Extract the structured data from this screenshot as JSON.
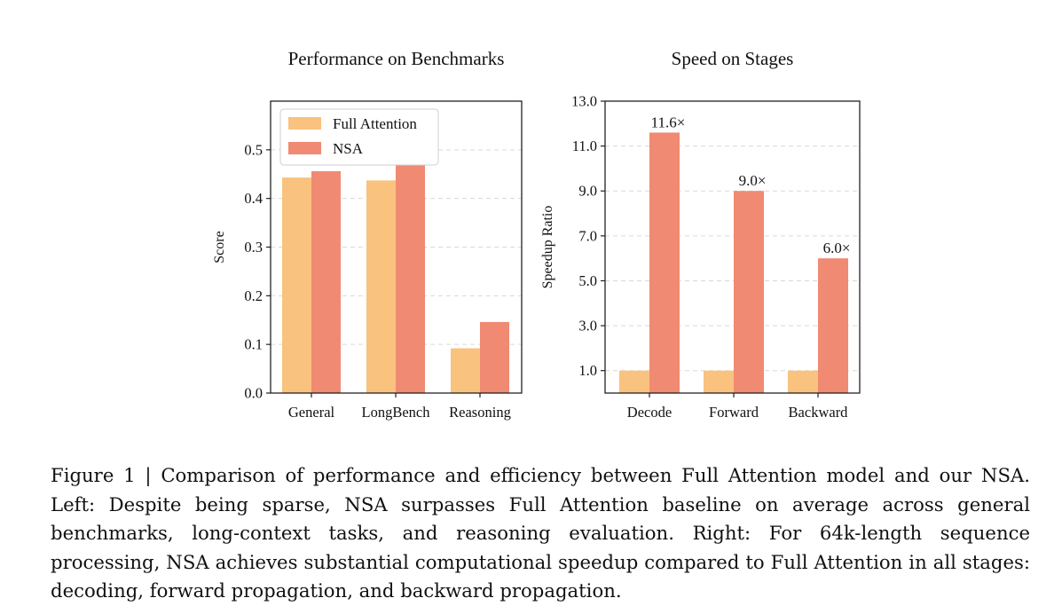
{
  "colors": {
    "full_attention": "#f9c27f",
    "nsa": "#f08a72",
    "grid": "#d9d9d9",
    "axis": "#222222"
  },
  "chart_data": [
    {
      "type": "bar",
      "title": "Performance on Benchmarks",
      "xlabel": "",
      "ylabel": "Score",
      "categories": [
        "General",
        "LongBench",
        "Reasoning"
      ],
      "series": [
        {
          "name": "Full Attention",
          "values": [
            0.443,
            0.437,
            0.092
          ]
        },
        {
          "name": "NSA",
          "values": [
            0.456,
            0.469,
            0.146
          ]
        }
      ],
      "ylim": [
        0,
        0.6
      ],
      "yticks": [
        "0.0",
        "0.1",
        "0.2",
        "0.3",
        "0.4",
        "0.5"
      ],
      "grid": true,
      "legend": "top-left"
    },
    {
      "type": "bar",
      "title": "Speed on Stages",
      "xlabel": "",
      "ylabel": "Speedup Ratio",
      "categories": [
        "Decode",
        "Forward",
        "Backward"
      ],
      "series": [
        {
          "name": "Full Attention",
          "values": [
            1.0,
            1.0,
            1.0
          ]
        },
        {
          "name": "NSA",
          "values": [
            11.6,
            9.0,
            6.0
          ]
        }
      ],
      "data_labels": [
        "11.6×",
        "9.0×",
        "6.0×"
      ],
      "ylim": [
        0,
        13
      ],
      "yticks": [
        "1.0",
        "3.0",
        "5.0",
        "7.0",
        "9.0",
        "11.0",
        "13.0"
      ],
      "grid": true,
      "legend": "none"
    }
  ],
  "caption": {
    "text": "Figure 1 | Comparison of performance and efficiency between Full Attention model and our NSA. Left: Despite being sparse, NSA surpasses Full Attention baseline on average across general benchmarks, long-context tasks, and reasoning evaluation.  Right: For 64k-length sequence processing, NSA achieves substantial computational speedup compared to Full Attention in all stages: decoding, forward propagation, and backward propagation."
  }
}
